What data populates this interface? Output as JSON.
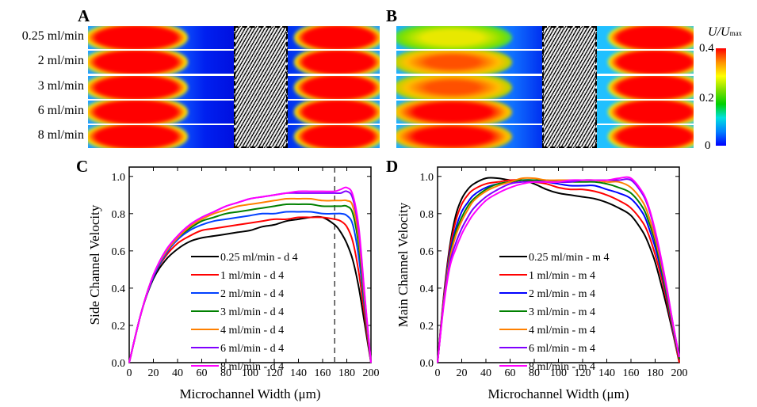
{
  "panels": {
    "A": {
      "letter": "A",
      "row_labels": [
        "0.25 ml/min",
        "2 ml/min",
        "3 ml/min",
        "6 ml/min",
        "8 ml/min"
      ]
    },
    "B": {
      "letter": "B"
    },
    "C": {
      "letter": "C"
    },
    "D": {
      "letter": "D"
    }
  },
  "colorbar": {
    "title_main": "U/U",
    "title_sub": "max",
    "ticks": [
      "0.4",
      "0.2",
      "0"
    ],
    "range": [
      0,
      0.4
    ],
    "colors": [
      "#0000ff",
      "#0080ff",
      "#00e0e0",
      "#00d000",
      "#80e000",
      "#ffff00",
      "#ff9000",
      "#ff0000"
    ]
  },
  "chart_data": [
    {
      "type": "line",
      "title": "",
      "xlabel": "Microchannel Width (μm)",
      "ylabel": "Side Channel Velocity",
      "xlim": [
        0,
        200
      ],
      "ylim": [
        0,
        1.05
      ],
      "xticks": [
        "0",
        "20",
        "40",
        "60",
        "80",
        "100",
        "120",
        "140",
        "160",
        "180",
        "200"
      ],
      "yticks": [
        "0.0",
        "0.2",
        "0.4",
        "0.6",
        "0.8",
        "1.0"
      ],
      "legend_position": "center",
      "annotation": {
        "type": "vertical-dashed-line",
        "x": 170
      },
      "x": [
        0,
        10,
        20,
        30,
        40,
        50,
        60,
        70,
        80,
        90,
        100,
        110,
        120,
        130,
        140,
        150,
        160,
        170,
        175,
        180,
        185,
        190,
        195,
        200
      ],
      "series": [
        {
          "name": "0.25 ml/min - d 4",
          "color": "#000000",
          "values": [
            0,
            0.27,
            0.45,
            0.55,
            0.61,
            0.65,
            0.67,
            0.68,
            0.69,
            0.7,
            0.71,
            0.73,
            0.74,
            0.76,
            0.77,
            0.78,
            0.78,
            0.74,
            0.7,
            0.64,
            0.55,
            0.4,
            0.2,
            0
          ]
        },
        {
          "name": "1 ml/min - d 4",
          "color": "#ff0000",
          "values": [
            0,
            0.27,
            0.46,
            0.57,
            0.64,
            0.68,
            0.71,
            0.72,
            0.73,
            0.74,
            0.75,
            0.76,
            0.77,
            0.77,
            0.78,
            0.78,
            0.78,
            0.77,
            0.76,
            0.73,
            0.65,
            0.48,
            0.24,
            0
          ]
        },
        {
          "name": "2 ml/min - d 4",
          "color": "#0040ff",
          "values": [
            0,
            0.27,
            0.46,
            0.58,
            0.66,
            0.71,
            0.74,
            0.76,
            0.77,
            0.78,
            0.79,
            0.8,
            0.8,
            0.81,
            0.81,
            0.81,
            0.8,
            0.8,
            0.8,
            0.79,
            0.74,
            0.56,
            0.28,
            0
          ]
        },
        {
          "name": "3 ml/min - d 4",
          "color": "#008000",
          "values": [
            0,
            0.27,
            0.47,
            0.59,
            0.67,
            0.72,
            0.76,
            0.78,
            0.8,
            0.81,
            0.82,
            0.83,
            0.84,
            0.85,
            0.85,
            0.85,
            0.84,
            0.84,
            0.84,
            0.84,
            0.8,
            0.62,
            0.3,
            0
          ]
        },
        {
          "name": "4 ml/min - d 4",
          "color": "#ff8000",
          "values": [
            0,
            0.27,
            0.47,
            0.59,
            0.67,
            0.73,
            0.77,
            0.8,
            0.82,
            0.84,
            0.85,
            0.86,
            0.87,
            0.88,
            0.88,
            0.88,
            0.87,
            0.87,
            0.87,
            0.87,
            0.84,
            0.66,
            0.32,
            0
          ]
        },
        {
          "name": "6 ml/min - d 4",
          "color": "#8000ff",
          "values": [
            0,
            0.27,
            0.47,
            0.6,
            0.68,
            0.74,
            0.78,
            0.81,
            0.84,
            0.86,
            0.88,
            0.89,
            0.9,
            0.91,
            0.91,
            0.91,
            0.91,
            0.91,
            0.91,
            0.92,
            0.88,
            0.7,
            0.34,
            0
          ]
        },
        {
          "name": "8 ml/min - d 4",
          "color": "#ff00ff",
          "values": [
            0,
            0.27,
            0.47,
            0.6,
            0.68,
            0.74,
            0.78,
            0.81,
            0.84,
            0.86,
            0.88,
            0.89,
            0.9,
            0.91,
            0.92,
            0.92,
            0.92,
            0.92,
            0.93,
            0.94,
            0.9,
            0.72,
            0.35,
            0
          ]
        }
      ]
    },
    {
      "type": "line",
      "title": "",
      "xlabel": "Microchannel Width (μm)",
      "ylabel": "Main Channel Velocity",
      "xlim": [
        0,
        200
      ],
      "ylim": [
        0,
        1.05
      ],
      "xticks": [
        "0",
        "20",
        "40",
        "60",
        "80",
        "100",
        "120",
        "140",
        "160",
        "180",
        "200"
      ],
      "yticks": [
        "0.0",
        "0.2",
        "0.4",
        "0.6",
        "0.8",
        "1.0"
      ],
      "legend_position": "center",
      "x": [
        0,
        5,
        10,
        15,
        20,
        25,
        30,
        40,
        50,
        60,
        70,
        80,
        90,
        100,
        110,
        120,
        130,
        140,
        150,
        160,
        170,
        175,
        180,
        185,
        190,
        195,
        200
      ],
      "series": [
        {
          "name": "0.25 ml/min - m 4",
          "color": "#000000",
          "values": [
            0,
            0.35,
            0.62,
            0.79,
            0.88,
            0.93,
            0.96,
            0.99,
            0.99,
            0.98,
            0.98,
            0.96,
            0.93,
            0.91,
            0.9,
            0.89,
            0.88,
            0.86,
            0.83,
            0.79,
            0.7,
            0.63,
            0.54,
            0.42,
            0.29,
            0.15,
            0
          ]
        },
        {
          "name": "1 ml/min - m 4",
          "color": "#ff0000",
          "values": [
            0,
            0.34,
            0.6,
            0.76,
            0.85,
            0.9,
            0.93,
            0.96,
            0.97,
            0.98,
            0.98,
            0.97,
            0.96,
            0.94,
            0.93,
            0.93,
            0.92,
            0.9,
            0.87,
            0.83,
            0.75,
            0.68,
            0.58,
            0.46,
            0.32,
            0.16,
            0
          ]
        },
        {
          "name": "2 ml/min - m 4",
          "color": "#0000ff",
          "values": [
            0,
            0.33,
            0.58,
            0.72,
            0.81,
            0.86,
            0.9,
            0.94,
            0.96,
            0.97,
            0.98,
            0.98,
            0.97,
            0.96,
            0.95,
            0.95,
            0.95,
            0.93,
            0.91,
            0.88,
            0.8,
            0.72,
            0.62,
            0.49,
            0.34,
            0.17,
            0.02
          ]
        },
        {
          "name": "3 ml/min - m 4",
          "color": "#008000",
          "values": [
            0,
            0.32,
            0.56,
            0.7,
            0.78,
            0.84,
            0.88,
            0.93,
            0.96,
            0.97,
            0.98,
            0.98,
            0.98,
            0.97,
            0.97,
            0.97,
            0.97,
            0.96,
            0.94,
            0.91,
            0.83,
            0.75,
            0.65,
            0.51,
            0.35,
            0.18,
            0.02
          ]
        },
        {
          "name": "4 ml/min - m 4",
          "color": "#ff8000",
          "values": [
            0,
            0.32,
            0.55,
            0.68,
            0.76,
            0.82,
            0.87,
            0.92,
            0.95,
            0.97,
            0.99,
            0.99,
            0.98,
            0.98,
            0.98,
            0.98,
            0.98,
            0.97,
            0.97,
            0.94,
            0.86,
            0.78,
            0.67,
            0.53,
            0.37,
            0.19,
            0.03
          ]
        },
        {
          "name": "6 ml/min - m 4",
          "color": "#8000ff",
          "values": [
            0,
            0.31,
            0.53,
            0.64,
            0.72,
            0.78,
            0.83,
            0.89,
            0.93,
            0.96,
            0.97,
            0.97,
            0.97,
            0.97,
            0.97,
            0.98,
            0.98,
            0.98,
            0.98,
            0.98,
            0.9,
            0.82,
            0.7,
            0.55,
            0.38,
            0.2,
            0.03
          ]
        },
        {
          "name": "8 ml/min - m 4",
          "color": "#ff00ff",
          "values": [
            0,
            0.3,
            0.51,
            0.61,
            0.69,
            0.75,
            0.8,
            0.87,
            0.91,
            0.94,
            0.96,
            0.97,
            0.97,
            0.97,
            0.98,
            0.98,
            0.98,
            0.98,
            0.99,
            0.99,
            0.91,
            0.83,
            0.71,
            0.56,
            0.39,
            0.2,
            0.03
          ]
        }
      ]
    }
  ]
}
